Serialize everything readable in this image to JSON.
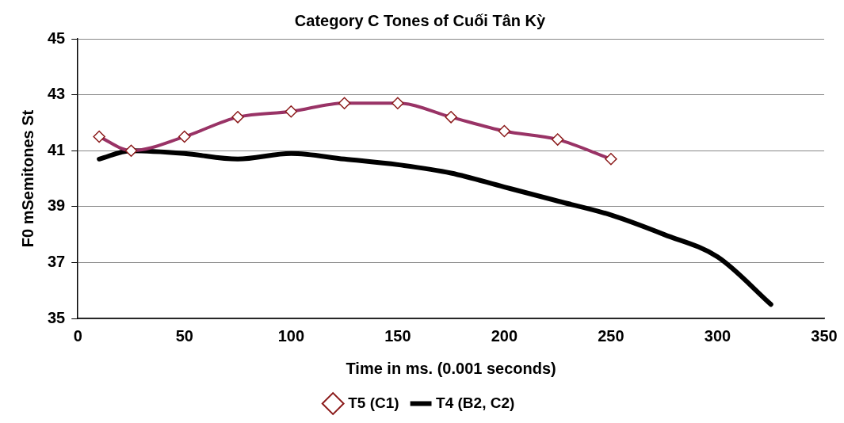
{
  "chart_data": {
    "type": "line",
    "title": "Category C Tones of Cuối Tân Kỳ",
    "xlabel": "Time in ms. (0.001 seconds)",
    "ylabel": "F0 mSemitones St",
    "xlim": [
      0,
      350
    ],
    "xticks": [
      0,
      50,
      100,
      150,
      200,
      250,
      300,
      350
    ],
    "ylim": [
      35,
      45
    ],
    "yticks": [
      35,
      37,
      39,
      41,
      43,
      45
    ],
    "grid": "y",
    "legend": "bottom",
    "series": [
      {
        "name": "T5 (C1)",
        "color": "#993366",
        "marker": "diamond",
        "x": [
          10,
          25,
          50,
          75,
          100,
          125,
          150,
          175,
          200,
          225,
          250
        ],
        "values": [
          41.5,
          41.0,
          41.5,
          42.2,
          42.4,
          42.7,
          42.7,
          42.2,
          41.7,
          41.4,
          40.7
        ]
      },
      {
        "name": "T4 (B2, C2)",
        "color": "#000000",
        "marker": "none",
        "x": [
          10,
          25,
          50,
          75,
          100,
          125,
          150,
          175,
          200,
          225,
          250,
          275,
          300,
          325
        ],
        "values": [
          40.7,
          41.0,
          40.9,
          40.7,
          40.9,
          40.7,
          40.5,
          40.2,
          39.7,
          39.2,
          38.7,
          38.0,
          37.2,
          35.5
        ]
      }
    ]
  }
}
